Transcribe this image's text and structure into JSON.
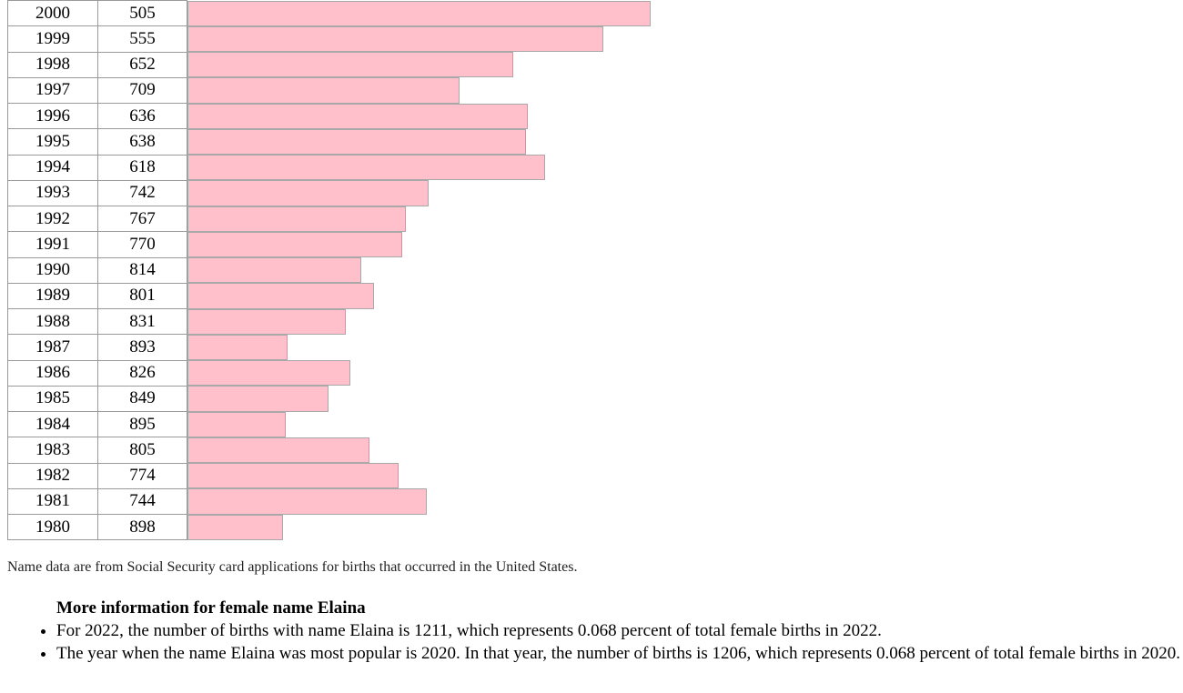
{
  "chart_data": {
    "type": "bar",
    "orientation": "horizontal",
    "title": "",
    "rows": [
      {
        "year": "2000",
        "rank": 505
      },
      {
        "year": "1999",
        "rank": 555
      },
      {
        "year": "1998",
        "rank": 652
      },
      {
        "year": "1997",
        "rank": 709
      },
      {
        "year": "1996",
        "rank": 636
      },
      {
        "year": "1995",
        "rank": 638
      },
      {
        "year": "1994",
        "rank": 618
      },
      {
        "year": "1993",
        "rank": 742
      },
      {
        "year": "1992",
        "rank": 767
      },
      {
        "year": "1991",
        "rank": 770
      },
      {
        "year": "1990",
        "rank": 814
      },
      {
        "year": "1989",
        "rank": 801
      },
      {
        "year": "1988",
        "rank": 831
      },
      {
        "year": "1987",
        "rank": 893
      },
      {
        "year": "1986",
        "rank": 826
      },
      {
        "year": "1985",
        "rank": 849
      },
      {
        "year": "1984",
        "rank": 895
      },
      {
        "year": "1983",
        "rank": 805
      },
      {
        "year": "1982",
        "rank": 774
      },
      {
        "year": "1981",
        "rank": 744
      },
      {
        "year": "1980",
        "rank": 898
      }
    ],
    "bar_color": "#ffc0cb",
    "rank_scale_max": 1000
  },
  "footer": {
    "source_note": "Name data are from Social Security card applications for births that occurred in the United States."
  },
  "info": {
    "heading": "More information for female name Elaina",
    "items": [
      "For 2022, the number of births with name Elaina is 1211, which represents 0.068 percent of total female births in 2022.",
      "The year when the name Elaina was most popular is 2020. In that year, the number of births is 1206, which represents 0.068 percent of total female births in 2020."
    ]
  }
}
